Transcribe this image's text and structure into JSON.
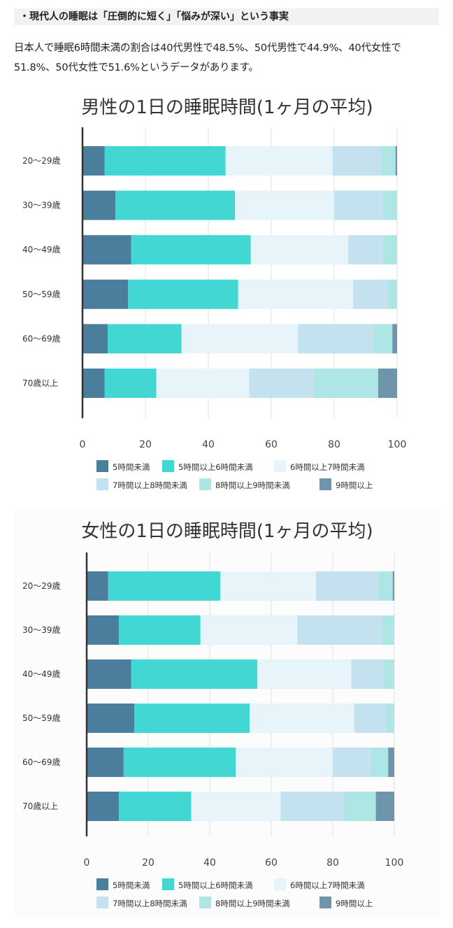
{
  "article": {
    "heading": "・現代人の睡眠は「圧倒的に短く」「悩みが深い」という事実",
    "intro_line1": "日本人で睡眠6時間未満の割合は40代男性で48.5%、50代男性で44.9%、40代女性で",
    "intro_line2": "51.8%、50代女性で51.6%というデータがあります。"
  },
  "colors": {
    "lt5": "#4a7e9c",
    "5to6": "#42d7d2",
    "6to7": "#e7f5fa",
    "7to8": "#c4e1f0",
    "8to9": "#aee6e6",
    "ge9": "#6f95ad",
    "axis": "#333333",
    "grid": "#e2e2e2"
  },
  "chart_data": [
    {
      "type": "bar",
      "orientation": "horizontal",
      "stacked": true,
      "title": "男性の1日の睡眠時間(1ヶ月の平均)",
      "categories": [
        "20～29歳",
        "30～39歳",
        "40～49歳",
        "50～59歳",
        "60～69歳",
        "70歳以上"
      ],
      "xlim": [
        0,
        100
      ],
      "xticks": [
        0,
        20,
        40,
        60,
        80,
        100
      ],
      "grid": true,
      "legend_position": "bottom",
      "series": [
        {
          "name": "5時間未満",
          "color_key": "lt5",
          "values": [
            7.0,
            10.5,
            15.5,
            14.5,
            8.0,
            7.0
          ]
        },
        {
          "name": "5時間以上6時間未満",
          "color_key": "5to6",
          "values": [
            38.5,
            38.0,
            38.0,
            35.0,
            23.5,
            16.5
          ]
        },
        {
          "name": "6時間以上7時間未満",
          "color_key": "6to7",
          "values": [
            34.0,
            31.5,
            31.0,
            36.5,
            37.0,
            29.5
          ]
        },
        {
          "name": "7時間以上8時間未満",
          "color_key": "7to8",
          "values": [
            15.5,
            15.5,
            11.0,
            11.0,
            24.0,
            20.5
          ]
        },
        {
          "name": "8時間以上9時間未満",
          "color_key": "8to9",
          "values": [
            4.5,
            4.5,
            4.5,
            3.0,
            6.0,
            20.5
          ]
        },
        {
          "name": "9時間以上",
          "color_key": "ge9",
          "values": [
            0.5,
            0.0,
            0.0,
            0.0,
            1.5,
            6.0
          ]
        }
      ],
      "legend": [
        [
          "5時間未満",
          "5時間以上6時間未満",
          "6時間以上7時間未満"
        ],
        [
          "7時間以上8時間未満",
          "8時間以上9時間未満",
          "9時間以上"
        ]
      ]
    },
    {
      "type": "bar",
      "orientation": "horizontal",
      "stacked": true,
      "title": "女性の1日の睡眠時間(1ヶ月の平均)",
      "categories": [
        "20～29歳",
        "30～39歳",
        "40～49歳",
        "50～59歳",
        "60～69歳",
        "70歳以上"
      ],
      "xlim": [
        0,
        100
      ],
      "xticks": [
        0,
        20,
        40,
        60,
        80,
        100
      ],
      "grid": true,
      "legend_position": "bottom",
      "series": [
        {
          "name": "5時間未満",
          "color_key": "lt5",
          "values": [
            7.0,
            10.5,
            14.5,
            15.5,
            12.0,
            10.5
          ]
        },
        {
          "name": "5時間以上6時間未満",
          "color_key": "5to6",
          "values": [
            36.5,
            26.5,
            41.0,
            37.5,
            36.5,
            23.5
          ]
        },
        {
          "name": "6時間以上7時間未満",
          "color_key": "6to7",
          "values": [
            31.0,
            31.5,
            30.5,
            34.0,
            31.5,
            29.0
          ]
        },
        {
          "name": "7時間以上8時間未満",
          "color_key": "7to8",
          "values": [
            20.5,
            27.5,
            10.5,
            10.5,
            12.5,
            20.5
          ]
        },
        {
          "name": "8時間以上9時間未満",
          "color_key": "8to9",
          "values": [
            4.5,
            4.0,
            3.5,
            2.5,
            5.5,
            10.5
          ]
        },
        {
          "name": "9時間以上",
          "color_key": "ge9",
          "values": [
            0.5,
            0.5,
            0.5,
            0.0,
            2.0,
            6.0
          ]
        }
      ],
      "legend": [
        [
          "5時間未満",
          "5時間以上6時間未満",
          "6時間以上7時間未満"
        ],
        [
          "7時間以上8時間未満",
          "8時間以上9時間未満",
          "9時間以上"
        ]
      ]
    }
  ]
}
